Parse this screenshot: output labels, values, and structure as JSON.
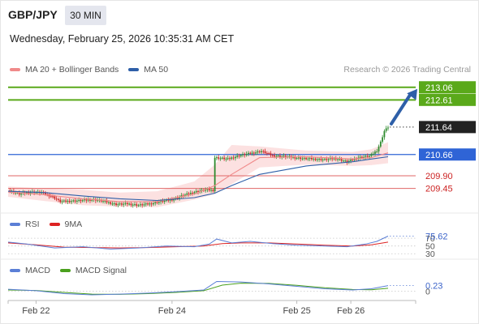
{
  "header": {
    "symbol": "GBP/JPY",
    "interval": "30 MIN",
    "datetime": "Wednesday, February 25, 2026 10:35:31 AM CET",
    "credit": "Research © 2026 Trading Central"
  },
  "legend": {
    "main": [
      {
        "label": "MA 20 + Bollinger Bands",
        "color": "#f08a8a"
      },
      {
        "label": "MA 50",
        "color": "#2e5fa8"
      }
    ],
    "rsi": [
      {
        "label": "RSI",
        "color": "#5b7fd6"
      },
      {
        "label": "9MA",
        "color": "#dd2222"
      }
    ],
    "macd": [
      {
        "label": "MACD",
        "color": "#5b7fd6"
      },
      {
        "label": "MACD Signal",
        "color": "#4aa01e"
      }
    ]
  },
  "colors": {
    "green_level": "#5aa91a",
    "blue_level": "#2f64d6",
    "red_level": "#e06666",
    "bollinger_fill": "#fbdada",
    "candle_up": "#2e8b2e",
    "candle_down": "#cc2222",
    "arrow": "#2e5fa8"
  },
  "chart_data": {
    "type": "candlestick",
    "ylim": [
      208.6,
      213.4
    ],
    "x_ticks": [
      "Feb 22",
      "Feb 24",
      "Feb 25",
      "Feb 26"
    ],
    "levels": [
      {
        "value": 213.06,
        "label": "213.06",
        "kind": "resistance"
      },
      {
        "value": 212.61,
        "label": "212.61",
        "kind": "resistance"
      },
      {
        "value": 211.64,
        "label": "211.64",
        "kind": "last"
      },
      {
        "value": 210.66,
        "label": "210.66",
        "kind": "pivot"
      },
      {
        "value": 209.9,
        "label": "209.90",
        "kind": "support"
      },
      {
        "value": 209.45,
        "label": "209.45",
        "kind": "support"
      }
    ],
    "price_path": [
      [
        0,
        209.38
      ],
      [
        6,
        209.25
      ],
      [
        12,
        209.32
      ],
      [
        18,
        209.3
      ],
      [
        24,
        209.15
      ],
      [
        28,
        208.98
      ],
      [
        34,
        209.0
      ],
      [
        40,
        209.02
      ],
      [
        46,
        209.05
      ],
      [
        52,
        208.98
      ],
      [
        58,
        208.88
      ],
      [
        64,
        208.9
      ],
      [
        70,
        208.85
      ],
      [
        76,
        208.9
      ],
      [
        82,
        208.98
      ],
      [
        88,
        209.05
      ],
      [
        94,
        209.2
      ],
      [
        100,
        209.32
      ],
      [
        106,
        209.4
      ],
      [
        110,
        209.38
      ],
      [
        111,
        210.55
      ],
      [
        118,
        210.5
      ],
      [
        124,
        210.62
      ],
      [
        130,
        210.7
      ],
      [
        136,
        210.78
      ],
      [
        142,
        210.62
      ],
      [
        150,
        210.58
      ],
      [
        158,
        210.52
      ],
      [
        164,
        210.5
      ],
      [
        170,
        210.48
      ],
      [
        176,
        210.52
      ],
      [
        182,
        210.4
      ],
      [
        188,
        210.55
      ],
      [
        194,
        210.6
      ],
      [
        198,
        210.8
      ],
      [
        200,
        211.1
      ],
      [
        202,
        211.5
      ],
      [
        204,
        211.64
      ]
    ],
    "bollinger": {
      "upper": [
        [
          0,
          209.52
        ],
        [
          20,
          209.45
        ],
        [
          40,
          209.4
        ],
        [
          60,
          209.3
        ],
        [
          80,
          209.35
        ],
        [
          100,
          209.7
        ],
        [
          111,
          210.3
        ],
        [
          120,
          211.0
        ],
        [
          135,
          210.95
        ],
        [
          160,
          210.8
        ],
        [
          185,
          210.75
        ],
        [
          195,
          210.85
        ],
        [
          204,
          211.1
        ]
      ],
      "lower": [
        [
          0,
          209.15
        ],
        [
          20,
          209.0
        ],
        [
          40,
          208.85
        ],
        [
          60,
          208.8
        ],
        [
          80,
          208.78
        ],
        [
          100,
          209.05
        ],
        [
          111,
          209.25
        ],
        [
          120,
          209.6
        ],
        [
          135,
          210.2
        ],
        [
          160,
          210.3
        ],
        [
          185,
          210.25
        ],
        [
          195,
          210.28
        ],
        [
          204,
          210.35
        ]
      ]
    },
    "ma20": [
      [
        0,
        209.32
      ],
      [
        20,
        209.22
      ],
      [
        40,
        209.08
      ],
      [
        60,
        208.98
      ],
      [
        80,
        208.98
      ],
      [
        100,
        209.25
      ],
      [
        111,
        209.55
      ],
      [
        120,
        209.95
      ],
      [
        135,
        210.55
      ],
      [
        160,
        210.58
      ],
      [
        185,
        210.5
      ],
      [
        195,
        210.55
      ],
      [
        204,
        210.72
      ]
    ],
    "ma50": [
      [
        0,
        209.35
      ],
      [
        20,
        209.3
      ],
      [
        40,
        209.18
      ],
      [
        60,
        209.08
      ],
      [
        80,
        209.02
      ],
      [
        100,
        209.12
      ],
      [
        111,
        209.28
      ],
      [
        120,
        209.55
      ],
      [
        135,
        209.95
      ],
      [
        160,
        210.25
      ],
      [
        185,
        210.4
      ],
      [
        195,
        210.5
      ],
      [
        204,
        210.58
      ]
    ],
    "rsi": {
      "value_label": "75.62",
      "ticks": [
        "70",
        "50",
        "30"
      ],
      "ylim": [
        20,
        85
      ],
      "rsi": [
        [
          0,
          60
        ],
        [
          10,
          55
        ],
        [
          25,
          45
        ],
        [
          40,
          48
        ],
        [
          55,
          42
        ],
        [
          70,
          45
        ],
        [
          85,
          50
        ],
        [
          100,
          48
        ],
        [
          108,
          55
        ],
        [
          112,
          68
        ],
        [
          120,
          58
        ],
        [
          130,
          62
        ],
        [
          142,
          56
        ],
        [
          155,
          52
        ],
        [
          170,
          50
        ],
        [
          182,
          48
        ],
        [
          192,
          55
        ],
        [
          198,
          62
        ],
        [
          204,
          75.62
        ]
      ],
      "ma9": [
        [
          0,
          58
        ],
        [
          15,
          53
        ],
        [
          30,
          47
        ],
        [
          45,
          46
        ],
        [
          60,
          45
        ],
        [
          75,
          46
        ],
        [
          90,
          48
        ],
        [
          105,
          50
        ],
        [
          115,
          56
        ],
        [
          125,
          58
        ],
        [
          140,
          58
        ],
        [
          155,
          55
        ],
        [
          170,
          52
        ],
        [
          185,
          50
        ],
        [
          195,
          53
        ],
        [
          204,
          60
        ]
      ]
    },
    "macd": {
      "value_label": "0.23",
      "ticks": [
        "0"
      ],
      "ylim": [
        -0.35,
        0.55
      ],
      "macd": [
        [
          0,
          0.08
        ],
        [
          15,
          0.02
        ],
        [
          30,
          -0.1
        ],
        [
          45,
          -0.15
        ],
        [
          60,
          -0.12
        ],
        [
          75,
          -0.08
        ],
        [
          90,
          -0.02
        ],
        [
          105,
          0.05
        ],
        [
          112,
          0.4
        ],
        [
          125,
          0.38
        ],
        [
          140,
          0.3
        ],
        [
          155,
          0.2
        ],
        [
          170,
          0.1
        ],
        [
          185,
          0.05
        ],
        [
          195,
          0.1
        ],
        [
          204,
          0.23
        ]
      ],
      "signal": [
        [
          0,
          0.05
        ],
        [
          15,
          0.03
        ],
        [
          30,
          -0.05
        ],
        [
          45,
          -0.12
        ],
        [
          60,
          -0.13
        ],
        [
          75,
          -0.1
        ],
        [
          90,
          -0.05
        ],
        [
          105,
          0.02
        ],
        [
          115,
          0.25
        ],
        [
          125,
          0.33
        ],
        [
          140,
          0.32
        ],
        [
          155,
          0.24
        ],
        [
          170,
          0.14
        ],
        [
          185,
          0.07
        ],
        [
          195,
          0.06
        ],
        [
          204,
          0.12
        ]
      ]
    }
  }
}
